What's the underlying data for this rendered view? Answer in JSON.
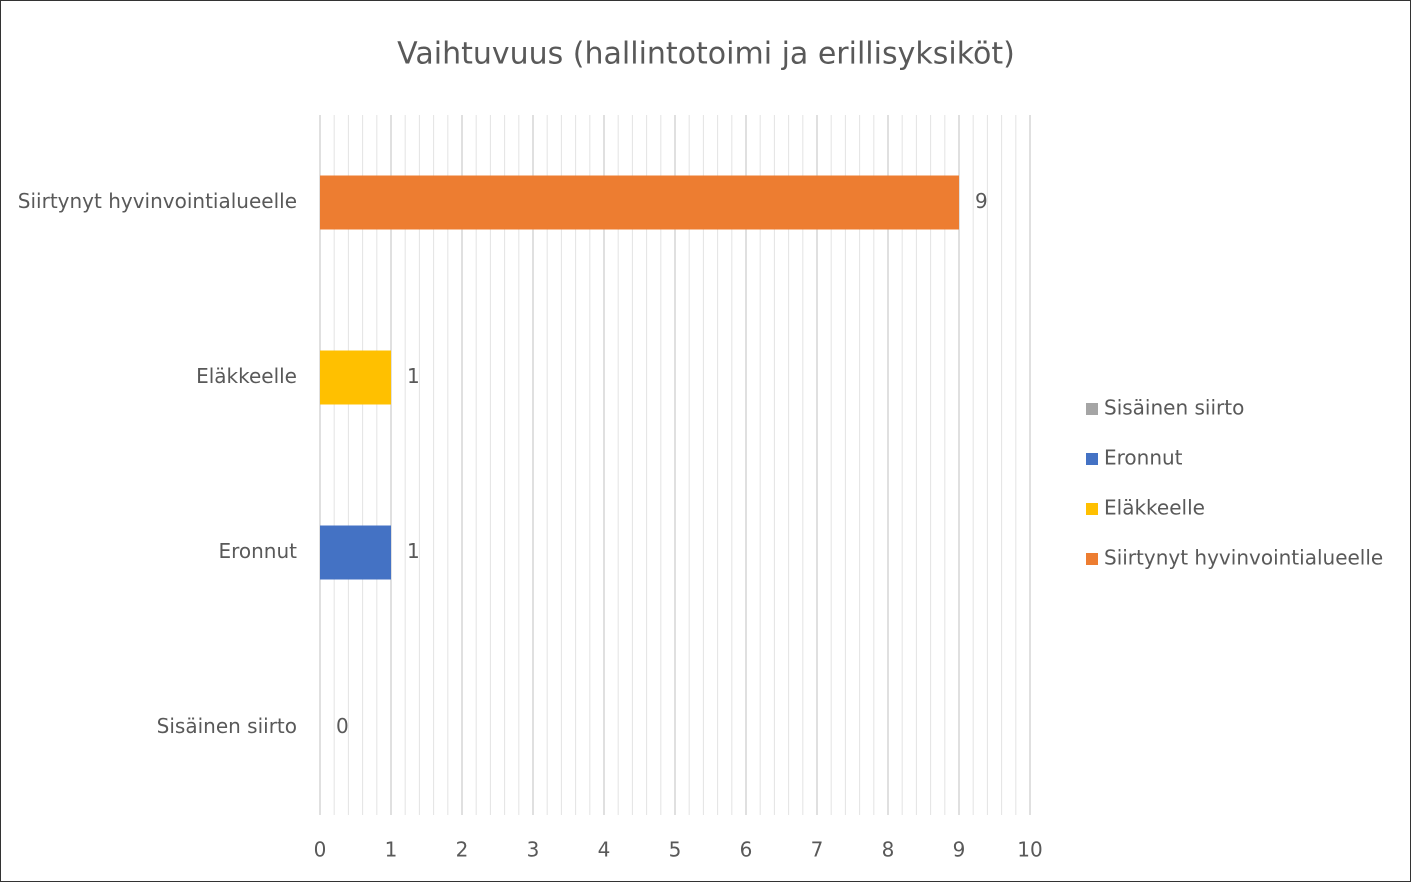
{
  "chart_data": {
    "type": "bar",
    "orientation": "horizontal",
    "title": "Vaihtuvuus (hallintotoimi ja erillisyksiköt)",
    "categories": [
      "Sisäinen siirto",
      "Eronnut",
      "Eläkkeelle",
      "Siirtynyt hyvinvointialueelle"
    ],
    "series": [
      {
        "name": "Sisäinen siirto",
        "color": "#a5a5a5",
        "values": [
          0,
          null,
          null,
          null
        ]
      },
      {
        "name": "Eronnut",
        "color": "#4472c4",
        "values": [
          null,
          1,
          null,
          null
        ]
      },
      {
        "name": "Eläkkeelle",
        "color": "#ffc000",
        "values": [
          null,
          null,
          1,
          null
        ]
      },
      {
        "name": "Siirtynyt hyvinvointialueelle",
        "color": "#ed7d31",
        "values": [
          null,
          null,
          null,
          9
        ]
      }
    ],
    "xlim": [
      0,
      10
    ],
    "xticks": [
      0,
      1,
      2,
      3,
      4,
      5,
      6,
      7,
      8,
      9,
      10
    ],
    "xminorticks": [
      0.2,
      0.4,
      0.6,
      0.8,
      1.2,
      1.4,
      1.6,
      1.8,
      2.2,
      2.4,
      2.6,
      2.8,
      3.2,
      3.4,
      3.6,
      3.8,
      4.2,
      4.4,
      4.6,
      4.8,
      5.2,
      5.4,
      5.6,
      5.8,
      6.2,
      6.4,
      6.6,
      6.8,
      7.2,
      7.4,
      7.6,
      7.8,
      8.2,
      8.4,
      8.6,
      8.8,
      9.2,
      9.4,
      9.6,
      9.8
    ],
    "grid": true,
    "legend": "right"
  }
}
